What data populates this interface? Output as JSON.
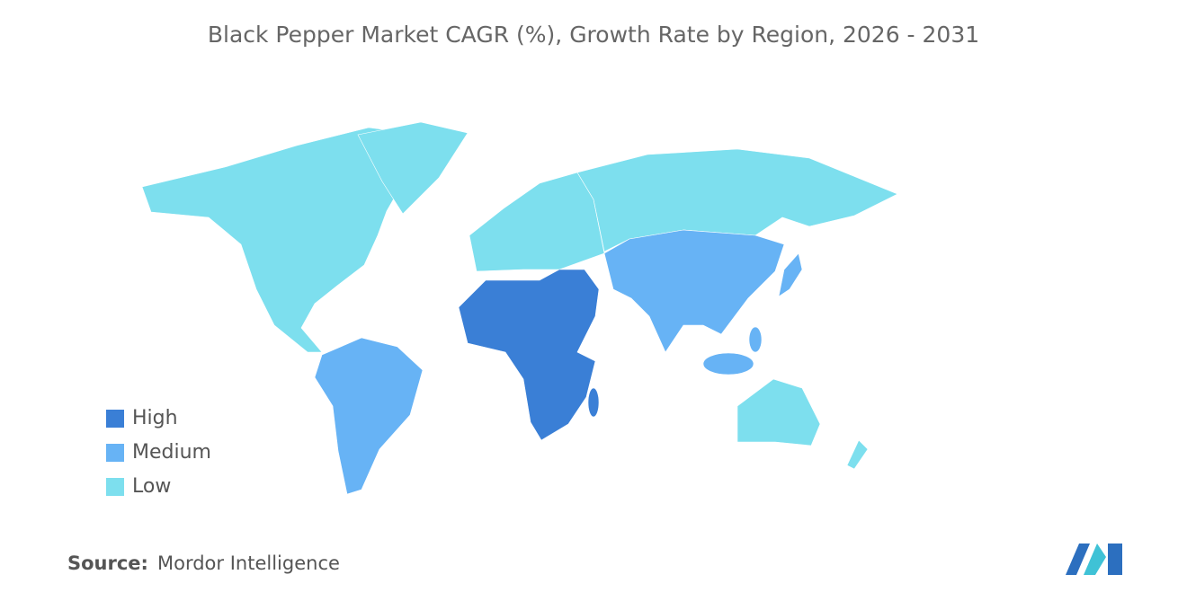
{
  "title": "Black Pepper Market CAGR (%), Growth Rate by Region, 2026 - 2031",
  "legend": [
    {
      "label": "High",
      "color": "#3a7fd6"
    },
    {
      "label": "Medium",
      "color": "#67b3f5"
    },
    {
      "label": "Low",
      "color": "#7ddfee"
    }
  ],
  "source": {
    "label": "Source:",
    "value": "Mordor Intelligence"
  }
}
